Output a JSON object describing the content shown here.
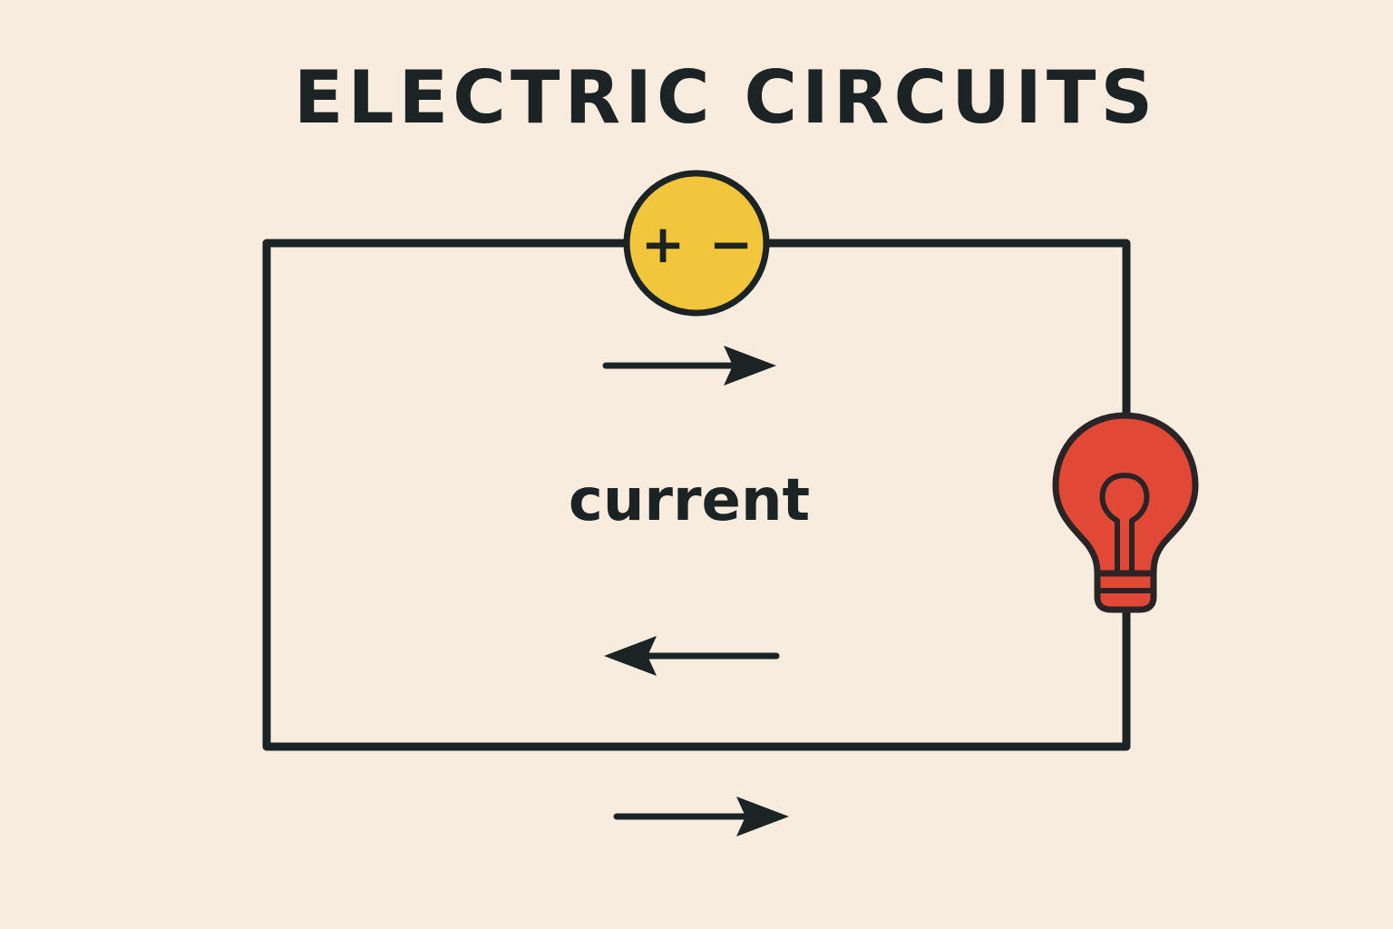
{
  "title": "ELECTRIC CIRCUITS",
  "label": "current",
  "battery": {
    "positive_symbol": "+",
    "negative_symbol": "−"
  },
  "icons": {
    "battery": "battery-icon",
    "bulb": "light-bulb-icon",
    "arrow_right": "arrow-right-icon",
    "arrow_left": "arrow-left-icon"
  },
  "colors": {
    "background": "#f7ecde",
    "ink": "#1c2325",
    "battery": "#f2c63a",
    "bulb": "#e14835",
    "bulb_outline": "#2a2426"
  }
}
